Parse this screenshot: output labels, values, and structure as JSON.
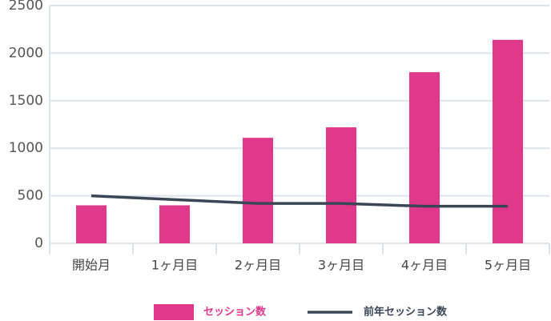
{
  "chart_data": {
    "type": "bar",
    "categories": [
      "開始月",
      "1ヶ月目",
      "2ヶ月目",
      "3ヶ月目",
      "4ヶ月目",
      "5ヶ月目"
    ],
    "series": [
      {
        "name": "セッション数",
        "type": "bar",
        "color": "#e0388a",
        "values": [
          400,
          400,
          1110,
          1220,
          1800,
          2140
        ]
      },
      {
        "name": "前年セッション数",
        "type": "line",
        "color": "#3a4656",
        "values": [
          500,
          460,
          420,
          420,
          390,
          390
        ]
      }
    ],
    "ylim": [
      0,
      2500
    ],
    "yticks": [
      0,
      500,
      1000,
      1500,
      2000,
      2500
    ],
    "grid": true,
    "legend": "bottom"
  }
}
